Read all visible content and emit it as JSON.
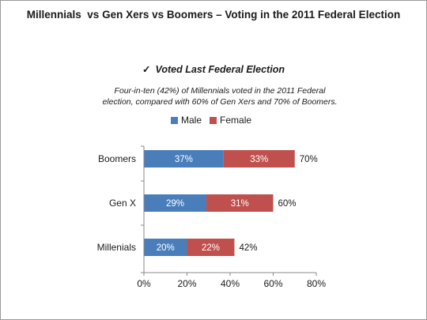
{
  "title": "Millennials  vs Gen Xers vs Boomers – Voting in the 2011 Federal Election",
  "subtitle": {
    "check": "✓",
    "text": "Voted Last Federal Election"
  },
  "note": {
    "line1": "Four-in-ten (42%) of Millennials voted in the 2011 Federal",
    "line2": "election, compared with 60% of Gen Xers and 70% of Boomers."
  },
  "colors": {
    "male": "#4a7ebb",
    "female": "#c0504d",
    "axis": "#888888",
    "text": "#1a1a1a"
  },
  "chart_data": {
    "type": "bar",
    "orientation": "horizontal",
    "stacked": true,
    "categories": [
      "Boomers",
      "Gen X",
      "Millenials"
    ],
    "series": [
      {
        "name": "Male",
        "values": [
          37,
          29,
          20
        ],
        "labels": [
          "37%",
          "29%",
          "20%"
        ]
      },
      {
        "name": "Female",
        "values": [
          33,
          31,
          22
        ],
        "labels": [
          "33%",
          "31%",
          "22%"
        ]
      }
    ],
    "totals": [
      70,
      60,
      42
    ],
    "total_labels": [
      "70%",
      "60%",
      "42%"
    ],
    "xlim": [
      0,
      80
    ],
    "x_ticks": [
      0,
      20,
      40,
      60,
      80
    ],
    "x_tick_labels": [
      "0%",
      "20%",
      "40%",
      "60%",
      "80%"
    ],
    "legend_position": "top",
    "grid": false
  }
}
